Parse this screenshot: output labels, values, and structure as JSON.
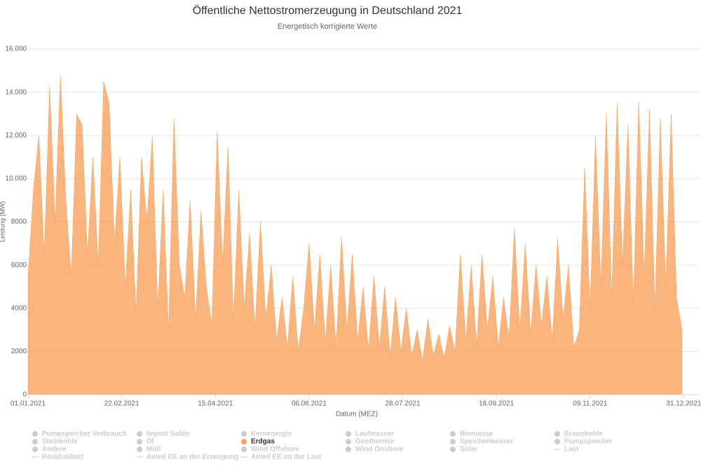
{
  "chart_data": {
    "type": "area",
    "title": "Öffentliche Nettostromerzeugung in Deutschland 2021",
    "subtitle": "Energetisch korrigierte Werte",
    "y_label": "Leistung (MW)",
    "x_label": "Datum (MEZ)",
    "xlim": [
      "2021-01-01",
      "2022-01-01"
    ],
    "ylim": [
      0,
      16000
    ],
    "yticks": [
      0,
      2000,
      4000,
      6000,
      8000,
      {
        "value": 10000,
        "label": "10.000"
      },
      {
        "value": 12000,
        "label": "12.000"
      },
      {
        "value": 14000,
        "label": "14.000"
      },
      {
        "value": 16000,
        "label": "16.000"
      }
    ],
    "xticks": [
      {
        "value": "2021-01-01",
        "label": "01.01.2021"
      },
      {
        "value": "2021-02-22",
        "label": "22.02.2021"
      },
      {
        "value": "2021-04-15",
        "label": "15.04.2021"
      },
      {
        "value": "2021-06-06",
        "label": "06.06.2021"
      },
      {
        "value": "2021-07-28",
        "label": "28.07.2021"
      },
      {
        "value": "2021-09-18",
        "label": "18.09.2021"
      },
      {
        "value": "2021-11-09",
        "label": "09.11.2021"
      },
      {
        "value": "2021-12-31",
        "label": "31.12.2021"
      }
    ],
    "grid": true,
    "x": [
      "2021-01-01",
      "2021-01-04",
      "2021-01-07",
      "2021-01-10",
      "2021-01-13",
      "2021-01-16",
      "2021-01-19",
      "2021-01-22",
      "2021-01-25",
      "2021-01-28",
      "2021-01-31",
      "2021-02-03",
      "2021-02-06",
      "2021-02-09",
      "2021-02-12",
      "2021-02-15",
      "2021-02-18",
      "2021-02-21",
      "2021-02-24",
      "2021-02-27",
      "2021-03-02",
      "2021-03-05",
      "2021-03-08",
      "2021-03-11",
      "2021-03-14",
      "2021-03-17",
      "2021-03-20",
      "2021-03-23",
      "2021-03-26",
      "2021-03-29",
      "2021-04-01",
      "2021-04-04",
      "2021-04-07",
      "2021-04-10",
      "2021-04-13",
      "2021-04-16",
      "2021-04-19",
      "2021-04-22",
      "2021-04-25",
      "2021-04-28",
      "2021-05-01",
      "2021-05-04",
      "2021-05-07",
      "2021-05-10",
      "2021-05-13",
      "2021-05-16",
      "2021-05-19",
      "2021-05-22",
      "2021-05-25",
      "2021-05-28",
      "2021-05-31",
      "2021-06-03",
      "2021-06-06",
      "2021-06-09",
      "2021-06-12",
      "2021-06-15",
      "2021-06-18",
      "2021-06-21",
      "2021-06-24",
      "2021-06-27",
      "2021-06-30",
      "2021-07-03",
      "2021-07-06",
      "2021-07-09",
      "2021-07-12",
      "2021-07-15",
      "2021-07-18",
      "2021-07-21",
      "2021-07-24",
      "2021-07-27",
      "2021-07-30",
      "2021-08-02",
      "2021-08-05",
      "2021-08-08",
      "2021-08-11",
      "2021-08-14",
      "2021-08-17",
      "2021-08-20",
      "2021-08-23",
      "2021-08-26",
      "2021-08-29",
      "2021-09-01",
      "2021-09-04",
      "2021-09-07",
      "2021-09-10",
      "2021-09-13",
      "2021-09-16",
      "2021-09-19",
      "2021-09-22",
      "2021-09-25",
      "2021-09-28",
      "2021-10-01",
      "2021-10-04",
      "2021-10-07",
      "2021-10-10",
      "2021-10-13",
      "2021-10-16",
      "2021-10-19",
      "2021-10-22",
      "2021-10-25",
      "2021-10-28",
      "2021-10-31",
      "2021-11-03",
      "2021-11-06",
      "2021-11-09",
      "2021-11-12",
      "2021-11-15",
      "2021-11-18",
      "2021-11-21",
      "2021-11-24",
      "2021-11-27",
      "2021-11-30",
      "2021-12-03",
      "2021-12-06",
      "2021-12-09",
      "2021-12-12",
      "2021-12-15",
      "2021-12-18",
      "2021-12-21",
      "2021-12-24",
      "2021-12-27",
      "2021-12-30"
    ],
    "series": [
      {
        "name": "Erdgas",
        "color": "#f7a35c",
        "values": [
          5500,
          9500,
          12000,
          6500,
          14300,
          8000,
          14800,
          9000,
          5500,
          13000,
          12500,
          6500,
          11000,
          6000,
          14500,
          13500,
          7000,
          11000,
          5000,
          9500,
          3800,
          11000,
          8000,
          12000,
          4000,
          9500,
          3000,
          12800,
          6000,
          4500,
          9000,
          3500,
          8500,
          5000,
          3200,
          12200,
          6000,
          11500,
          3500,
          9500,
          4000,
          7500,
          3000,
          8000,
          3500,
          6000,
          2500,
          4500,
          2200,
          5500,
          2000,
          4000,
          7000,
          3000,
          6500,
          2500,
          6000,
          2200,
          7300,
          3000,
          6500,
          2500,
          5000,
          2000,
          5500,
          2200,
          5000,
          1800,
          4500,
          2000,
          4000,
          1800,
          3000,
          1600,
          3500,
          1800,
          2800,
          1700,
          3200,
          2000,
          6500,
          2500,
          6000,
          2300,
          6500,
          3000,
          5500,
          2200,
          4500,
          2600,
          7700,
          3000,
          7000,
          2800,
          6000,
          3200,
          5500,
          2500,
          7200,
          3500,
          6000,
          2200,
          3000,
          10500,
          4000,
          12000,
          5000,
          13000,
          4500,
          13500,
          6000,
          12500,
          4200,
          13600,
          5500,
          13200,
          4000,
          12800,
          5000,
          13000,
          4500,
          3000
        ]
      }
    ],
    "legend": [
      {
        "name": "Pumpspeicher Verbrauch",
        "symbol": "circle"
      },
      {
        "name": "Import Saldo",
        "symbol": "circle"
      },
      {
        "name": "Kernenergie",
        "symbol": "circle"
      },
      {
        "name": "Laufwasser",
        "symbol": "circle"
      },
      {
        "name": "Biomasse",
        "symbol": "circle"
      },
      {
        "name": "Braunkohle",
        "symbol": "circle"
      },
      {
        "name": "Steinkohle",
        "symbol": "circle"
      },
      {
        "name": "Öl",
        "symbol": "circle"
      },
      {
        "name": "Erdgas",
        "symbol": "circle"
      },
      {
        "name": "Geothermie",
        "symbol": "circle"
      },
      {
        "name": "Speicherwasser",
        "symbol": "circle"
      },
      {
        "name": "Pumpspeicher",
        "symbol": "circle"
      },
      {
        "name": "Andere",
        "symbol": "circle"
      },
      {
        "name": "Müll",
        "symbol": "circle"
      },
      {
        "name": "Wind Offshore",
        "symbol": "circle"
      },
      {
        "name": "Wind Onshore",
        "symbol": "circle"
      },
      {
        "name": "Solar",
        "symbol": "circle"
      },
      {
        "name": "Last",
        "symbol": "line"
      },
      {
        "name": "Residuallast",
        "symbol": "line"
      },
      {
        "name": "Anteil EE an der Erzeugung",
        "symbol": "line"
      },
      {
        "name": "Anteil EE an der Last",
        "symbol": "line"
      }
    ]
  }
}
